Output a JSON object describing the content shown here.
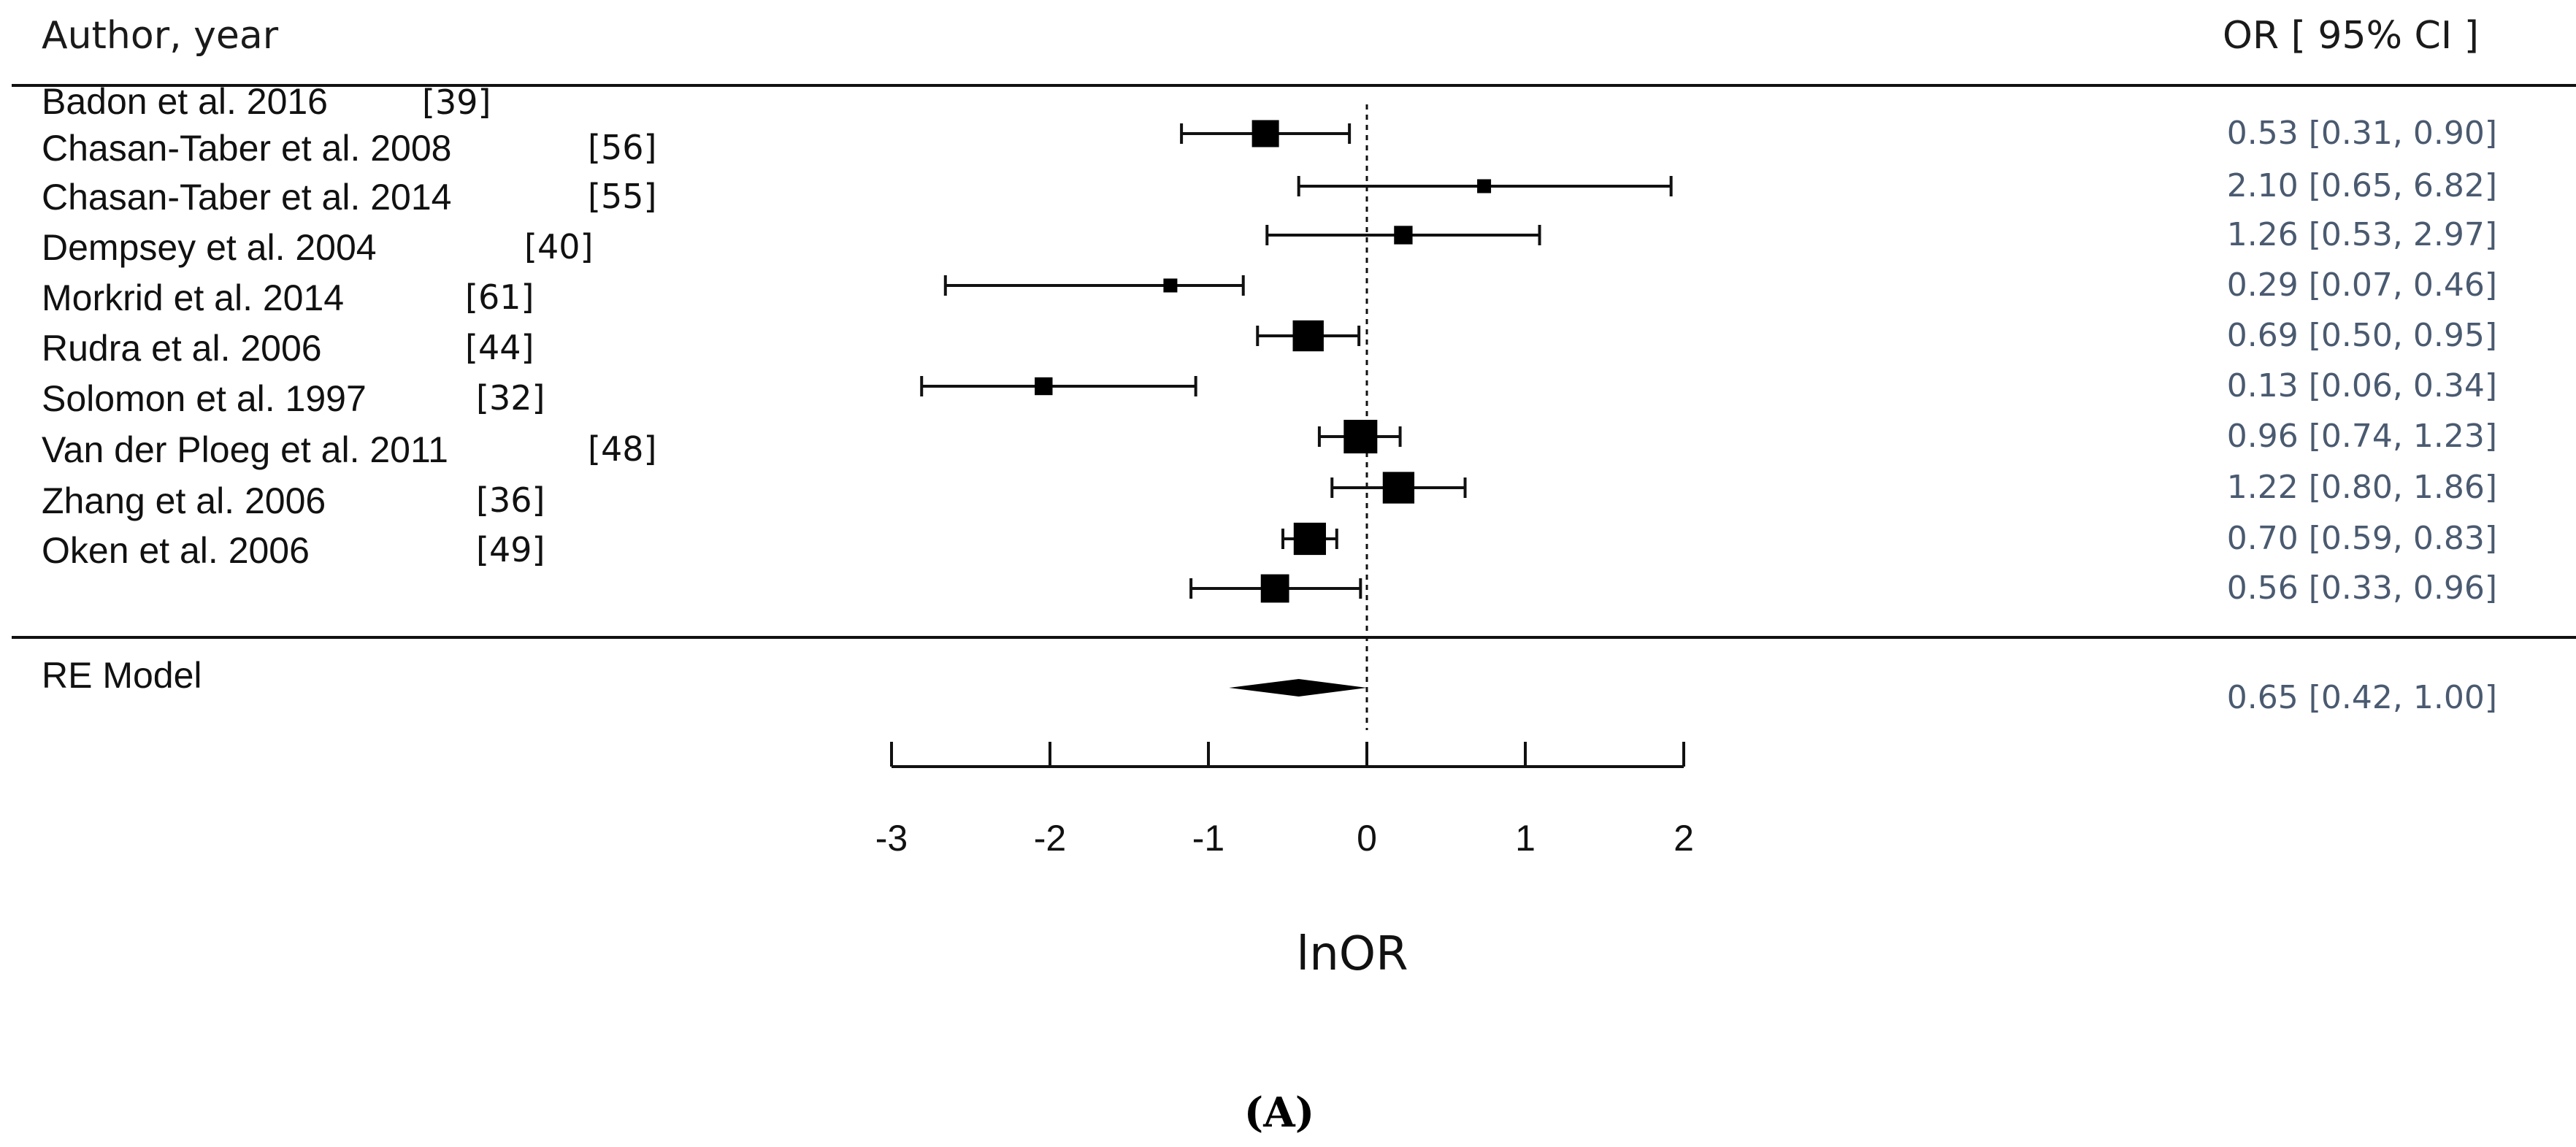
{
  "chart_data": {
    "type": "forest",
    "header_left": "Author, year",
    "header_right": "OR [ 95% CI ]",
    "xlabel": "lnOR",
    "xlim": [
      -3,
      2
    ],
    "xticks": [
      -3,
      -2,
      -1,
      0,
      1,
      2
    ],
    "xtick_labels": [
      "-3",
      "-2",
      "-1",
      "0",
      "1",
      "2"
    ],
    "reference_line": 0,
    "panel_label": "(A)",
    "studies": [
      {
        "label": "Badon et al. 2016",
        "ref": "[39]",
        "or_text": "0.53 [0.31, 0.90]",
        "ln_or": -0.64,
        "ln_low": -1.17,
        "ln_high": -0.11,
        "weight": 3
      },
      {
        "label": "Chasan-Taber et al. 2008",
        "ref": "[56]",
        "or_text": "2.10 [0.65, 6.82]",
        "ln_or": 0.74,
        "ln_high": 1.92,
        "ln_low": -0.43,
        "weight": 1
      },
      {
        "label": "Chasan-Taber et al. 2014",
        "ref": "[55]",
        "or_text": "1.26 [0.53, 2.97]",
        "ln_or": 0.23,
        "ln_low": -0.63,
        "ln_high": 1.09,
        "weight": 1.7
      },
      {
        "label": "Dempsey et al. 2004",
        "ref": "[40]",
        "or_text": "0.29 [0.07, 0.46]",
        "ln_or": -1.24,
        "ln_low": -2.66,
        "ln_high": -0.78,
        "weight": 1
      },
      {
        "label": "Morkrid et al. 2014",
        "ref": "[61]",
        "or_text": "0.69 [0.50, 0.95]",
        "ln_or": -0.37,
        "ln_low": -0.69,
        "ln_high": -0.05,
        "weight": 3.6
      },
      {
        "label": "Rudra et al. 2006",
        "ref": "[44]",
        "or_text": "0.13 [0.06, 0.34]",
        "ln_or": -2.04,
        "ln_low": -2.81,
        "ln_high": -1.08,
        "weight": 1.6
      },
      {
        "label": "Solomon et al. 1997",
        "ref": "[32]",
        "or_text": "0.96 [0.74, 1.23]",
        "ln_or": -0.04,
        "ln_low": -0.3,
        "ln_high": 0.21,
        "weight": 4
      },
      {
        "label": "Van der Ploeg et al. 2011",
        "ref": "[48]",
        "or_text": "1.22 [0.80, 1.86]",
        "ln_or": 0.2,
        "ln_low": -0.22,
        "ln_high": 0.62,
        "weight": 3.7
      },
      {
        "label": "Zhang et al. 2006",
        "ref": "[36]",
        "or_text": "0.70 [0.59, 0.83]",
        "ln_or": -0.36,
        "ln_low": -0.53,
        "ln_high": -0.19,
        "weight": 3.8
      },
      {
        "label": "Oken et al. 2006",
        "ref": "[49]",
        "or_text": "0.56 [0.33, 0.96]",
        "ln_or": -0.58,
        "ln_low": -1.11,
        "ln_high": -0.04,
        "weight": 3.2
      }
    ],
    "summary": {
      "label": "RE Model",
      "or_text": "0.65 [0.42, 1.00]",
      "ln_or": -0.43,
      "ln_low": -0.87,
      "ln_high": 0.0
    }
  }
}
